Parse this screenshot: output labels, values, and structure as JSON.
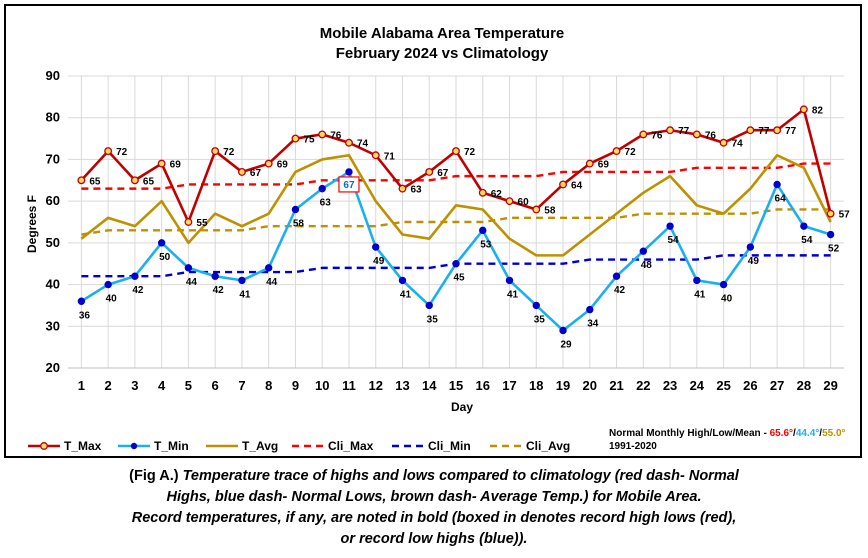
{
  "chart_data": {
    "type": "line",
    "title": "Mobile Alabama Area Temperature",
    "subtitle": "February 2024 vs Climatology",
    "xlabel": "Day",
    "ylabel": "Degrees F",
    "ylim": [
      20,
      90
    ],
    "yticks": [
      20,
      30,
      40,
      50,
      60,
      70,
      80,
      90
    ],
    "x": [
      1,
      2,
      3,
      4,
      5,
      6,
      7,
      8,
      9,
      10,
      11,
      12,
      13,
      14,
      15,
      16,
      17,
      18,
      19,
      20,
      21,
      22,
      23,
      24,
      25,
      26,
      27,
      28,
      29
    ],
    "grid": true,
    "legend_position": "bottom",
    "series": [
      {
        "name": "T_Max",
        "color": "#c00000",
        "style": "solid-markers",
        "values": [
          65,
          72,
          65,
          69,
          55,
          72,
          67,
          69,
          75,
          76,
          74,
          71,
          63,
          67,
          72,
          62,
          60,
          58,
          64,
          69,
          72,
          76,
          77,
          76,
          74,
          77,
          77,
          82,
          57
        ]
      },
      {
        "name": "T_Min",
        "color": "#1ab0f0",
        "style": "solid-markers",
        "values": [
          36,
          40,
          42,
          50,
          44,
          42,
          41,
          44,
          58,
          63,
          67,
          49,
          41,
          35,
          45,
          53,
          41,
          35,
          29,
          34,
          42,
          48,
          54,
          41,
          40,
          49,
          64,
          54,
          52
        ]
      },
      {
        "name": "T_Avg",
        "color": "#bf9000",
        "style": "solid",
        "values": [
          51,
          56,
          54,
          60,
          50,
          57,
          54,
          57,
          67,
          70,
          71,
          60,
          52,
          51,
          59,
          58,
          51,
          47,
          47,
          52,
          57,
          62,
          66,
          59,
          57,
          63,
          71,
          68,
          55
        ]
      },
      {
        "name": "Cli_Max",
        "color": "#ff0000",
        "style": "dashed",
        "values": [
          63,
          63,
          63,
          63,
          64,
          64,
          64,
          64,
          64,
          65,
          65,
          65,
          65,
          65,
          66,
          66,
          66,
          66,
          67,
          67,
          67,
          67,
          67,
          68,
          68,
          68,
          68,
          69,
          69
        ]
      },
      {
        "name": "Cli_Min",
        "color": "#0000cc",
        "style": "dashed",
        "values": [
          42,
          42,
          42,
          42,
          43,
          43,
          43,
          43,
          43,
          44,
          44,
          44,
          44,
          44,
          45,
          45,
          45,
          45,
          45,
          46,
          46,
          46,
          46,
          46,
          47,
          47,
          47,
          47,
          47
        ]
      },
      {
        "name": "Cli_Avg",
        "color": "#bf9000",
        "style": "dashed",
        "values": [
          52,
          53,
          53,
          53,
          53,
          53,
          53,
          54,
          54,
          54,
          54,
          54,
          55,
          55,
          55,
          55,
          56,
          56,
          56,
          56,
          56,
          57,
          57,
          57,
          57,
          57,
          58,
          58,
          58
        ]
      }
    ],
    "annotations": {
      "boxed": [
        {
          "series": "T_Min",
          "day": 11,
          "value": 67,
          "text": "67"
        }
      ]
    }
  },
  "normals": {
    "label": "Normal Monthly High/Low/Mean - ",
    "high": "65.6°",
    "low": "44.4°",
    "mean": "55.0°",
    "sep": "/",
    "period": "1991-2020",
    "high_color": "#ff0000",
    "low_color": "#1ab0f0",
    "mean_color": "#bf9000"
  },
  "caption": {
    "fig": "(Fig A.)",
    "line1": " Temperature trace of highs and lows compared to climatology (red dash- Normal",
    "line2": "Highs, blue dash- Normal Lows, brown dash- Average Temp.) for Mobile Area.",
    "line3": "Record temperatures, if any, are noted in bold (boxed in denotes record high lows (red),",
    "line4": "or record low highs (blue))."
  }
}
